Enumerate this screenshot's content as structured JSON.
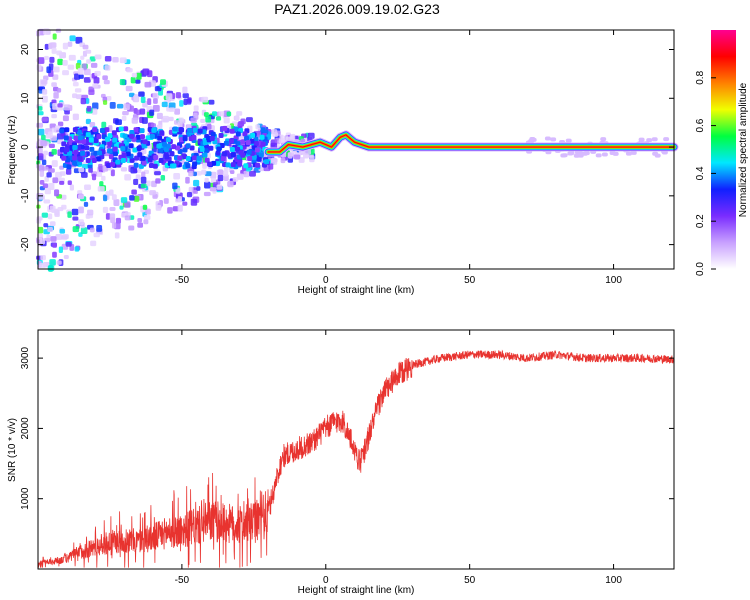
{
  "title": "PAZ1.2026.009.19.02.G23",
  "colors": {
    "snr_line": "#e8332f",
    "frame": "#000000",
    "background": "#ffffff"
  },
  "chart_data": [
    {
      "type": "heatmap",
      "name": "spectrogram",
      "title": "PAZ1.2026.009.19.02.G23",
      "xlabel": "Height of straight line (km)",
      "ylabel": "Frequency (Hz)",
      "xlim": [
        -100,
        121
      ],
      "ylim": [
        -25,
        24
      ],
      "xticks": [
        -50,
        0,
        50,
        100
      ],
      "yticks": [
        -20,
        -10,
        0,
        10,
        20
      ],
      "colorbar": {
        "label": "Normalized spectral amplitude",
        "range": [
          0,
          1
        ],
        "ticks": [
          "0.0",
          "0.2",
          "0.4",
          "0.6",
          "0.8"
        ],
        "stops": [
          "#ffffff",
          "#c8a0ff",
          "#7a2cff",
          "#1020ff",
          "#00e8ff",
          "#00ff40",
          "#f0ff00",
          "#ff8000",
          "#ff0000",
          "#ff0090"
        ]
      },
      "ridge": [
        {
          "x": -20,
          "y": -1
        },
        {
          "x": -16,
          "y": -1
        },
        {
          "x": -13,
          "y": 0.5
        },
        {
          "x": -8,
          "y": 0
        },
        {
          "x": -5,
          "y": 0.5
        },
        {
          "x": -2,
          "y": 1
        },
        {
          "x": 2,
          "y": 0
        },
        {
          "x": 5,
          "y": 2
        },
        {
          "x": 7,
          "y": 2.5
        },
        {
          "x": 10,
          "y": 1
        },
        {
          "x": 15,
          "y": 0
        },
        {
          "x": 121,
          "y": 0
        }
      ]
    },
    {
      "type": "line",
      "name": "snr",
      "xlabel": "Height of straight line (km)",
      "ylabel": "SNR (10 * v/v)",
      "xlim": [
        -100,
        121
      ],
      "ylim": [
        0,
        3400
      ],
      "xticks": [
        -50,
        0,
        50,
        100
      ],
      "yticks": [
        1000,
        2000,
        3000
      ],
      "series": [
        {
          "name": "SNR",
          "x": [
            -100,
            -95,
            -90,
            -85,
            -80,
            -75,
            -70,
            -65,
            -60,
            -55,
            -50,
            -45,
            -40,
            -35,
            -30,
            -25,
            -20,
            -17,
            -15,
            -10,
            -5,
            0,
            3,
            6,
            8,
            10,
            12,
            15,
            18,
            20,
            25,
            30,
            35,
            40,
            50,
            60,
            70,
            80,
            90,
            100,
            110,
            121
          ],
          "values": [
            80,
            100,
            150,
            250,
            320,
            380,
            400,
            400,
            450,
            520,
            550,
            600,
            680,
            650,
            620,
            650,
            800,
            1300,
            1600,
            1700,
            1800,
            2000,
            2100,
            2100,
            1900,
            1700,
            1500,
            1900,
            2300,
            2500,
            2750,
            2900,
            2950,
            3000,
            3050,
            3050,
            3000,
            3050,
            3000,
            3000,
            3000,
            2980
          ]
        }
      ]
    }
  ]
}
